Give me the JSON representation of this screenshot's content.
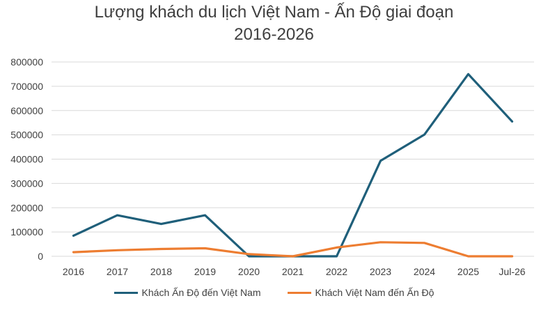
{
  "chart_data": {
    "type": "line",
    "title": "Lượng khách du lịch Việt Nam - Ấn Độ giai đoạn 2016-2026",
    "title_lines": [
      "Lượng khách du lịch Việt Nam - Ấn Độ giai đoạn",
      "2016-2026"
    ],
    "categories": [
      "2016",
      "2017",
      "2018",
      "2019",
      "2020",
      "2021",
      "2022",
      "2023",
      "2024",
      "2025",
      "Jul-26"
    ],
    "series": [
      {
        "name": "Khách Ấn Độ đến Việt Nam",
        "color": "#1f5f7a",
        "values": [
          85000,
          169000,
          133000,
          169000,
          0,
          0,
          0,
          393000,
          501000,
          750000,
          555000
        ]
      },
      {
        "name": "Khách Việt Nam đến Ấn Độ",
        "color": "#ed7d31",
        "values": [
          17000,
          25000,
          30000,
          33000,
          9000,
          0,
          36000,
          58000,
          55000,
          0,
          0
        ]
      }
    ],
    "ylim": [
      0,
      800000
    ],
    "yticks": [
      "0",
      "100000",
      "200000",
      "300000",
      "400000",
      "500000",
      "600000",
      "700000",
      "800000"
    ],
    "xlabel": "",
    "ylabel": "",
    "grid": true,
    "legend": "bottom"
  }
}
